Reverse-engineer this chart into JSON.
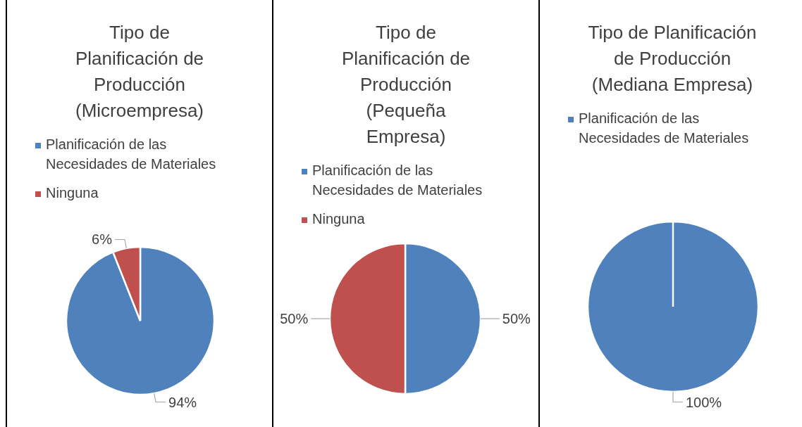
{
  "chart_data": [
    {
      "type": "pie",
      "title": "Tipo de Planificación de Producción (Microempresa)",
      "categories": [
        "Planificación de las Necesidades de Materiales",
        "Ninguna"
      ],
      "values": [
        94,
        6
      ],
      "colors": [
        "#4f81bd",
        "#c0504d"
      ],
      "value_labels": [
        "94%",
        "6%"
      ],
      "legend": "top"
    },
    {
      "type": "pie",
      "title": "Tipo de Planificación de Producción (Pequeña Empresa)",
      "categories": [
        "Planificación de las Necesidades de Materiales",
        "Ninguna"
      ],
      "values": [
        50,
        50
      ],
      "colors": [
        "#4f81bd",
        "#c0504d"
      ],
      "value_labels": [
        "50%",
        "50%"
      ],
      "legend": "top"
    },
    {
      "type": "pie",
      "title": "Tipo de Planificación de Producción (Mediana Empresa)",
      "categories": [
        "Planificación de las Necesidades de Materiales"
      ],
      "values": [
        100
      ],
      "colors": [
        "#4f81bd"
      ],
      "value_labels": [
        "100%"
      ],
      "legend": "top"
    }
  ]
}
